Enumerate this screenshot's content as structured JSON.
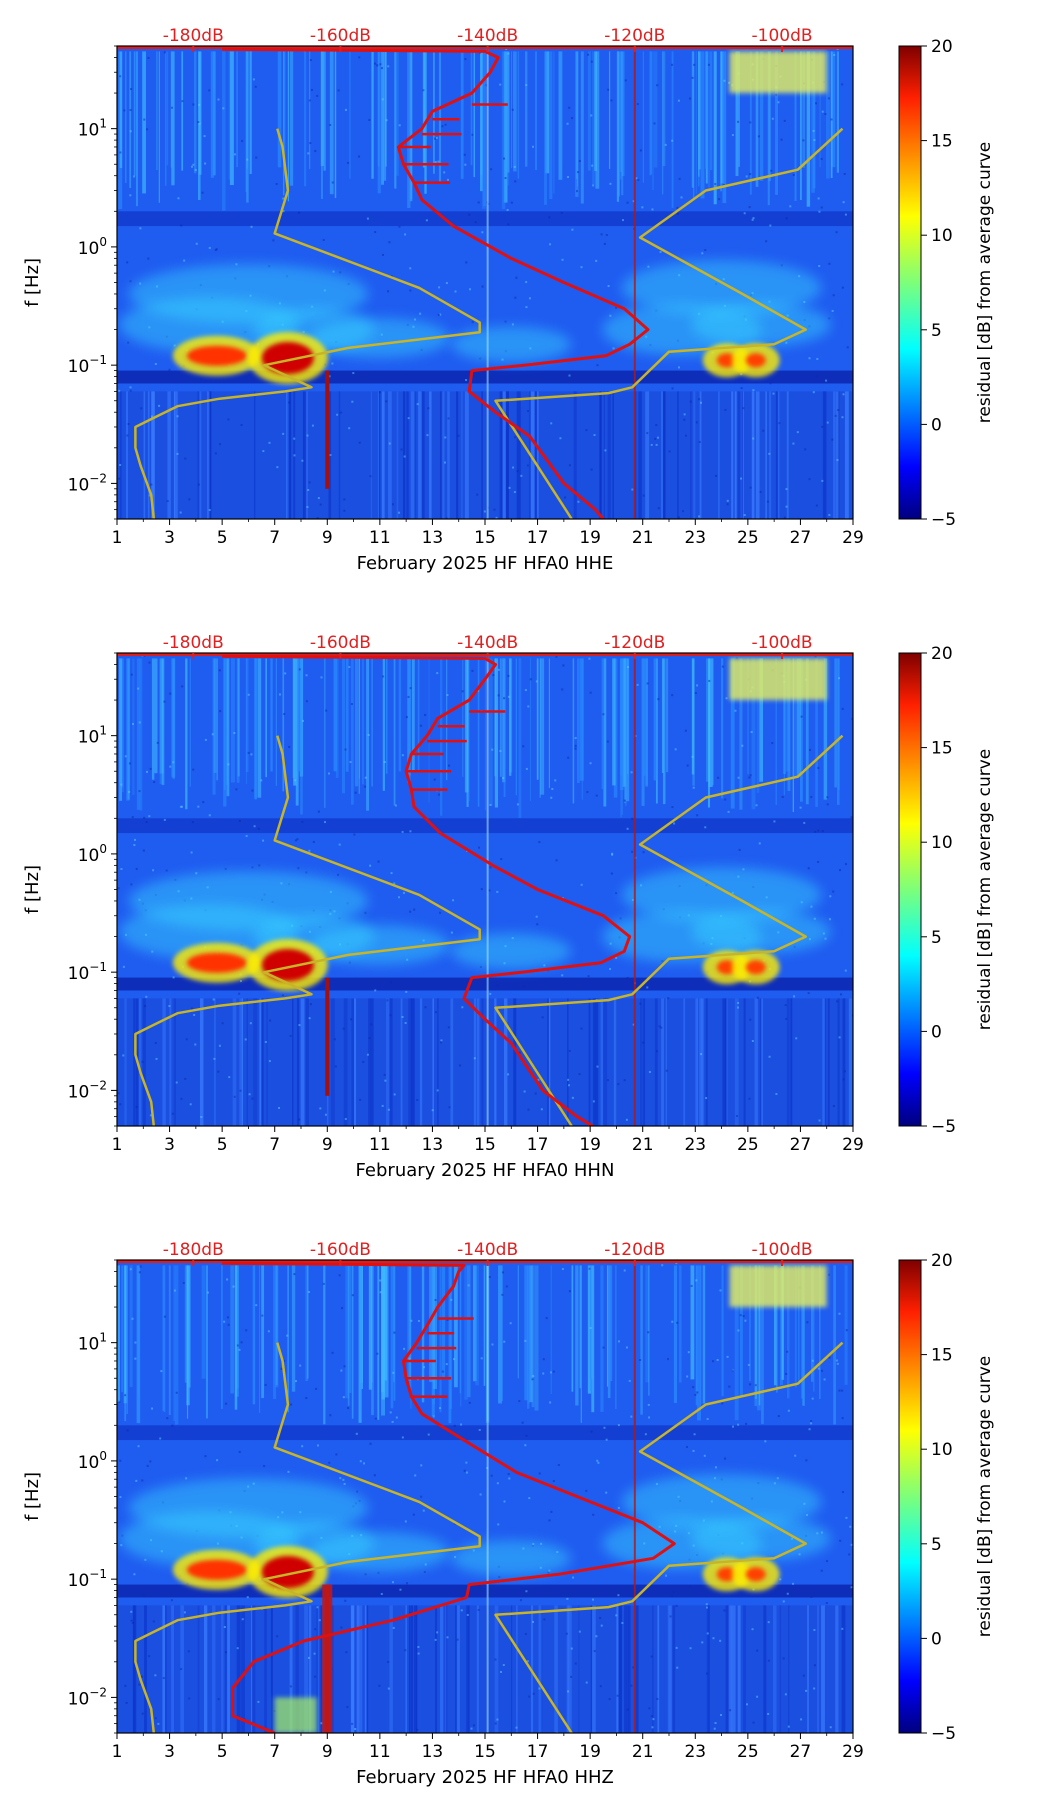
{
  "colors": {
    "noise_model": "#c8b428",
    "psd_curve": "#e01010",
    "db_label": "#e02020",
    "frame": "#000000"
  },
  "chart_data": [
    {
      "type": "heatmap",
      "title": "",
      "channel": "HHE",
      "xlabel": "February 2025 HF HFA0  HHE",
      "ylabel": "f [Hz]",
      "x_ticks": [
        "1",
        "3",
        "5",
        "7",
        "9",
        "11",
        "13",
        "15",
        "17",
        "19",
        "21",
        "23",
        "25",
        "27",
        "29"
      ],
      "xlim": [
        1,
        29
      ],
      "y_scale": "log",
      "ylim": [
        0.005,
        50
      ],
      "y_ticks": [
        {
          "value": 0.01,
          "base": "10",
          "exp": "−2"
        },
        {
          "value": 0.1,
          "base": "10",
          "exp": "−1"
        },
        {
          "value": 1,
          "base": "10",
          "exp": "0"
        },
        {
          "value": 10,
          "base": "10",
          "exp": "1"
        }
      ],
      "top_axis_labels": [
        {
          "label": "-180dB",
          "x": 3.9
        },
        {
          "label": "-160dB",
          "x": 9.5
        },
        {
          "label": "-140dB",
          "x": 15.1
        },
        {
          "label": "-120dB",
          "x": 20.7
        },
        {
          "label": "-100dB",
          "x": 26.3
        }
      ],
      "colorbar": {
        "label": "residual [dB] from average curve",
        "min": -5,
        "max": 20,
        "ticks": [
          "20",
          "15",
          "10",
          "5",
          "0",
          "−5"
        ]
      },
      "series": [
        {
          "name": "noise model",
          "x": [
            2.4,
            2.3,
            1.9,
            1.7,
            1.7,
            2.3,
            3.3,
            4.9,
            7.4,
            8.4,
            6.6,
            9.8,
            14.8,
            14.8,
            12.5,
            7.0,
            7.5,
            7.3,
            7.1
          ],
          "y": [
            0.005,
            0.008,
            0.014,
            0.02,
            0.03,
            0.035,
            0.045,
            0.052,
            0.06,
            0.065,
            0.1,
            0.14,
            0.19,
            0.23,
            0.45,
            1.3,
            3,
            7,
            10
          ]
        },
        {
          "name": "noise model (high)",
          "x": [
            18.3,
            15.4,
            19.7,
            20.6,
            22.0,
            26.0,
            27.2,
            24.8,
            20.9,
            23.4,
            26.9,
            28.6
          ],
          "y": [
            0.005,
            0.05,
            0.058,
            0.065,
            0.13,
            0.15,
            0.2,
            0.4,
            1.2,
            3,
            4.5,
            10
          ]
        },
        {
          "name": "PSD",
          "x": [
            19.5,
            19.2,
            18.0,
            16.7,
            15.4,
            14.4,
            14.5,
            16.5,
            19.6,
            20.5,
            21.2,
            20.3,
            18.0,
            16.0,
            13.8,
            12.6,
            12.3,
            11.9,
            11.7,
            12.6,
            13.0,
            14.5,
            15.2,
            15.5,
            15.0,
            5.0
          ],
          "y": [
            0.005,
            0.006,
            0.01,
            0.025,
            0.04,
            0.06,
            0.09,
            0.1,
            0.12,
            0.15,
            0.2,
            0.3,
            0.5,
            0.8,
            1.5,
            2.5,
            3.5,
            5,
            7,
            10,
            14,
            20,
            30,
            40,
            45,
            47
          ]
        }
      ]
    },
    {
      "type": "heatmap",
      "title": "",
      "channel": "HHN",
      "xlabel": "February 2025 HF HFA0  HHN",
      "ylabel": "f [Hz]",
      "x_ticks": [
        "1",
        "3",
        "5",
        "7",
        "9",
        "11",
        "13",
        "15",
        "17",
        "19",
        "21",
        "23",
        "25",
        "27",
        "29"
      ],
      "xlim": [
        1,
        29
      ],
      "y_scale": "log",
      "ylim": [
        0.005,
        50
      ],
      "y_ticks": [
        {
          "value": 0.01,
          "base": "10",
          "exp": "−2"
        },
        {
          "value": 0.1,
          "base": "10",
          "exp": "−1"
        },
        {
          "value": 1,
          "base": "10",
          "exp": "0"
        },
        {
          "value": 10,
          "base": "10",
          "exp": "1"
        }
      ],
      "top_axis_labels": [
        {
          "label": "-180dB",
          "x": 3.9
        },
        {
          "label": "-160dB",
          "x": 9.5
        },
        {
          "label": "-140dB",
          "x": 15.1
        },
        {
          "label": "-120dB",
          "x": 20.7
        },
        {
          "label": "-100dB",
          "x": 26.3
        }
      ],
      "colorbar": {
        "label": "residual [dB] from average curve",
        "min": -5,
        "max": 20,
        "ticks": [
          "20",
          "15",
          "10",
          "5",
          "0",
          "−5"
        ]
      },
      "series": [
        {
          "name": "noise model",
          "x": [
            2.4,
            2.3,
            1.9,
            1.7,
            1.7,
            2.3,
            3.3,
            4.9,
            7.4,
            8.4,
            6.6,
            9.8,
            14.8,
            14.8,
            12.5,
            7.0,
            7.5,
            7.3,
            7.1
          ],
          "y": [
            0.005,
            0.008,
            0.014,
            0.02,
            0.03,
            0.035,
            0.045,
            0.052,
            0.06,
            0.065,
            0.1,
            0.14,
            0.19,
            0.23,
            0.45,
            1.3,
            3,
            7,
            10
          ]
        },
        {
          "name": "noise model (high)",
          "x": [
            18.3,
            15.4,
            19.7,
            20.6,
            22.0,
            26.0,
            27.2,
            24.8,
            20.9,
            23.4,
            26.9,
            28.6
          ],
          "y": [
            0.005,
            0.05,
            0.058,
            0.065,
            0.13,
            0.15,
            0.2,
            0.4,
            1.2,
            3,
            4.5,
            10
          ]
        },
        {
          "name": "PSD",
          "x": [
            19.1,
            18.5,
            17.2,
            16.0,
            15.0,
            14.2,
            14.5,
            16.4,
            19.4,
            20.3,
            20.5,
            19.5,
            17.0,
            15.3,
            13.3,
            12.3,
            12.2,
            12.0,
            12.2,
            12.8,
            13.2,
            14.4,
            15.0,
            15.4,
            15.0,
            5.0
          ],
          "y": [
            0.005,
            0.006,
            0.01,
            0.025,
            0.04,
            0.06,
            0.09,
            0.1,
            0.12,
            0.15,
            0.2,
            0.3,
            0.5,
            0.8,
            1.5,
            2.5,
            3.5,
            5,
            7,
            10,
            14,
            20,
            30,
            40,
            45,
            47
          ]
        }
      ]
    },
    {
      "type": "heatmap",
      "title": "",
      "channel": "HHZ",
      "xlabel": "February 2025 HF HFA0  HHZ",
      "ylabel": "f [Hz]",
      "x_ticks": [
        "1",
        "3",
        "5",
        "7",
        "9",
        "11",
        "13",
        "15",
        "17",
        "19",
        "21",
        "23",
        "25",
        "27",
        "29"
      ],
      "xlim": [
        1,
        29
      ],
      "y_scale": "log",
      "ylim": [
        0.005,
        50
      ],
      "y_ticks": [
        {
          "value": 0.01,
          "base": "10",
          "exp": "−2"
        },
        {
          "value": 0.1,
          "base": "10",
          "exp": "−1"
        },
        {
          "value": 1,
          "base": "10",
          "exp": "0"
        },
        {
          "value": 10,
          "base": "10",
          "exp": "1"
        }
      ],
      "top_axis_labels": [
        {
          "label": "-180dB",
          "x": 3.9
        },
        {
          "label": "-160dB",
          "x": 9.5
        },
        {
          "label": "-140dB",
          "x": 15.1
        },
        {
          "label": "-120dB",
          "x": 20.7
        },
        {
          "label": "-100dB",
          "x": 26.3
        }
      ],
      "colorbar": {
        "label": "residual [dB] from average curve",
        "min": -5,
        "max": 20,
        "ticks": [
          "20",
          "15",
          "10",
          "5",
          "0",
          "−5"
        ]
      },
      "series": [
        {
          "name": "noise model",
          "x": [
            2.4,
            2.3,
            1.9,
            1.7,
            1.7,
            2.3,
            3.3,
            4.9,
            7.4,
            8.4,
            6.6,
            9.8,
            14.8,
            14.8,
            12.5,
            7.0,
            7.5,
            7.3,
            7.1
          ],
          "y": [
            0.005,
            0.008,
            0.014,
            0.02,
            0.03,
            0.035,
            0.045,
            0.052,
            0.06,
            0.065,
            0.1,
            0.14,
            0.19,
            0.23,
            0.45,
            1.3,
            3,
            7,
            10
          ]
        },
        {
          "name": "noise model (high)",
          "x": [
            18.3,
            15.4,
            19.7,
            20.6,
            22.0,
            26.0,
            27.2,
            24.8,
            20.9,
            23.4,
            26.9,
            28.6
          ],
          "y": [
            0.005,
            0.05,
            0.058,
            0.065,
            0.13,
            0.15,
            0.2,
            0.4,
            1.2,
            3,
            4.5,
            10
          ]
        },
        {
          "name": "PSD",
          "x": [
            7.0,
            5.4,
            5.4,
            6.2,
            8.1,
            11.5,
            14.3,
            14.4,
            17.8,
            21.4,
            22.2,
            21.0,
            18.5,
            16.2,
            14.2,
            12.6,
            12.2,
            12.0,
            11.9,
            12.4,
            12.8,
            13.2,
            13.8,
            14.0,
            14.2,
            5.0
          ],
          "y": [
            0.005,
            0.007,
            0.012,
            0.02,
            0.03,
            0.045,
            0.07,
            0.09,
            0.11,
            0.15,
            0.2,
            0.3,
            0.5,
            0.8,
            1.5,
            2.5,
            3.5,
            5,
            7,
            10,
            14,
            20,
            30,
            40,
            45,
            47
          ]
        }
      ]
    }
  ]
}
